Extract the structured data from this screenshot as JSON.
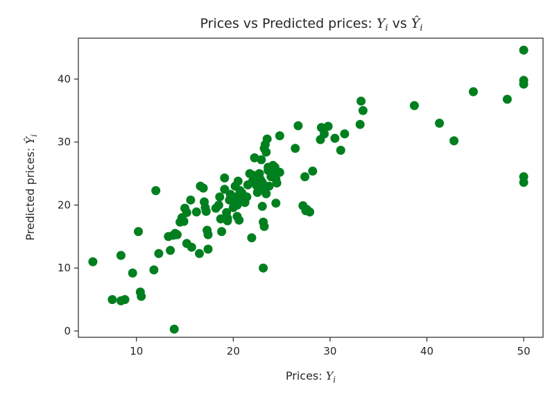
{
  "chart_data": {
    "type": "scatter",
    "title": {
      "prefix": "Prices vs Predicted prices: ",
      "sym1": "Y",
      "sub1": "i",
      "mid": " vs ",
      "sym2": "Ŷ",
      "sub2": "i"
    },
    "xlabel": {
      "prefix": "Prices: ",
      "sym": "Y",
      "sub": "i"
    },
    "ylabel": {
      "prefix": "Predicted prices: ",
      "sym": "Ŷ",
      "sub": "i"
    },
    "xlim": [
      4,
      52
    ],
    "ylim": [
      -1,
      46.5
    ],
    "xticks": [
      10,
      20,
      30,
      40,
      50
    ],
    "yticks": [
      0,
      10,
      20,
      30,
      40
    ],
    "grid": false,
    "legend": "none",
    "marker_color": "#007f1f",
    "points": [
      [
        5.5,
        11
      ],
      [
        7.5,
        5
      ],
      [
        8.4,
        4.8
      ],
      [
        8.8,
        5
      ],
      [
        8.4,
        12
      ],
      [
        9.6,
        9.2
      ],
      [
        10.2,
        15.8
      ],
      [
        10.4,
        6.2
      ],
      [
        10.5,
        5.5
      ],
      [
        11.8,
        9.7
      ],
      [
        12,
        22.3
      ],
      [
        12.3,
        12.3
      ],
      [
        13.3,
        15
      ],
      [
        13.5,
        12.8
      ],
      [
        13.8,
        15.2
      ],
      [
        14,
        15.5
      ],
      [
        14.2,
        15.3
      ],
      [
        13.9,
        0.3
      ],
      [
        14.5,
        17.3
      ],
      [
        14.7,
        18
      ],
      [
        14.9,
        17.4
      ],
      [
        15,
        19.5
      ],
      [
        15.2,
        18.8
      ],
      [
        15.2,
        13.9
      ],
      [
        15.6,
        20.8
      ],
      [
        15.7,
        13.3
      ],
      [
        16.2,
        18.9
      ],
      [
        16.5,
        12.3
      ],
      [
        16.6,
        23
      ],
      [
        16.9,
        22.7
      ],
      [
        17,
        20.5
      ],
      [
        17.1,
        19.6
      ],
      [
        17.2,
        19
      ],
      [
        17.3,
        16
      ],
      [
        17.4,
        15.3
      ],
      [
        17.4,
        13
      ],
      [
        18.2,
        19.5
      ],
      [
        18.5,
        20
      ],
      [
        18.6,
        21.3
      ],
      [
        18.7,
        17.8
      ],
      [
        18.8,
        15.8
      ],
      [
        19.1,
        24.3
      ],
      [
        19.1,
        22.5
      ],
      [
        19.3,
        18.8
      ],
      [
        19.4,
        17.9
      ],
      [
        19.4,
        17.5
      ],
      [
        19.6,
        20.8
      ],
      [
        19.7,
        21.7
      ],
      [
        20,
        19.6
      ],
      [
        20.1,
        20.3
      ],
      [
        20.2,
        23
      ],
      [
        20.3,
        21.3
      ],
      [
        20.4,
        20
      ],
      [
        20.4,
        18.2
      ],
      [
        20.5,
        23.8
      ],
      [
        20.6,
        17.6
      ],
      [
        20.7,
        22.3
      ],
      [
        20.9,
        21.9
      ],
      [
        21,
        20.7
      ],
      [
        21.2,
        20.4
      ],
      [
        21.4,
        21.3
      ],
      [
        21.5,
        23.2
      ],
      [
        21.7,
        25
      ],
      [
        21.9,
        14.8
      ],
      [
        22,
        23.8
      ],
      [
        22.1,
        24.7
      ],
      [
        22.2,
        27.5
      ],
      [
        22.4,
        23.1
      ],
      [
        22.5,
        22
      ],
      [
        22.7,
        25
      ],
      [
        22.8,
        24.1
      ],
      [
        22.9,
        27.2
      ],
      [
        23,
        23.6
      ],
      [
        23,
        22.8
      ],
      [
        23,
        19.8
      ],
      [
        23.1,
        17.3
      ],
      [
        23.1,
        10
      ],
      [
        23.2,
        16.6
      ],
      [
        23.2,
        29
      ],
      [
        23.3,
        29.6
      ],
      [
        23.4,
        28.4
      ],
      [
        23.4,
        21.8
      ],
      [
        23.5,
        30.5
      ],
      [
        23.6,
        26
      ],
      [
        23.6,
        25.5
      ],
      [
        23.7,
        23
      ],
      [
        23.9,
        24.5
      ],
      [
        24,
        25.9
      ],
      [
        24.1,
        26.3
      ],
      [
        24.2,
        25.1
      ],
      [
        24.3,
        26
      ],
      [
        24.4,
        24.1
      ],
      [
        24.4,
        20.3
      ],
      [
        24.5,
        23.5
      ],
      [
        24.8,
        25.2
      ],
      [
        24.8,
        31
      ],
      [
        26.4,
        29
      ],
      [
        26.7,
        32.6
      ],
      [
        27.2,
        19.9
      ],
      [
        27.4,
        24.5
      ],
      [
        27.5,
        19.1
      ],
      [
        27.6,
        19.3
      ],
      [
        27.9,
        18.9
      ],
      [
        28.2,
        25.4
      ],
      [
        29,
        30.4
      ],
      [
        29.1,
        32.3
      ],
      [
        29.4,
        31.3
      ],
      [
        29.8,
        32.5
      ],
      [
        30.5,
        30.6
      ],
      [
        31.1,
        28.7
      ],
      [
        31.5,
        31.3
      ],
      [
        33.1,
        32.8
      ],
      [
        33.2,
        36.5
      ],
      [
        33.4,
        35
      ],
      [
        38.7,
        35.8
      ],
      [
        41.3,
        33
      ],
      [
        42.8,
        30.2
      ],
      [
        44.8,
        38
      ],
      [
        48.3,
        36.8
      ],
      [
        50,
        44.6
      ],
      [
        50,
        39.8
      ],
      [
        50,
        39.2
      ],
      [
        50,
        24.5
      ],
      [
        50,
        23.6
      ]
    ]
  }
}
